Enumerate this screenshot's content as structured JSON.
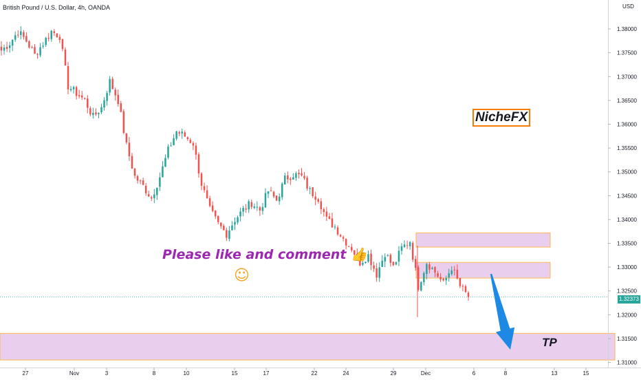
{
  "chart_data": {
    "type": "candlestick",
    "title": "British Pound / U.S. Dollar, 4h, OANDA",
    "currency": "USD",
    "yticks": [
      "1.38000",
      "1.37500",
      "1.37000",
      "1.36500",
      "1.36000",
      "1.35500",
      "1.35000",
      "1.34500",
      "1.34000",
      "1.33500",
      "1.33000",
      "1.32500",
      "1.32000",
      "1.31500",
      "1.31000"
    ],
    "ylim": [
      1.3095,
      1.3855
    ],
    "xticks": [
      "27",
      "Nov",
      "3",
      "8",
      "10",
      "15",
      "17",
      "22",
      "24",
      "29",
      "Dec",
      "6",
      "8",
      "13",
      "15"
    ],
    "last_price": "1.32373",
    "colors": {
      "up": "#26a69a",
      "down": "#ef5350",
      "zone_fill": "#e1bee7",
      "zone_border": "#ffb74d",
      "arrow": "#1e88e5"
    },
    "zones": [
      {
        "label": "supply-zone-upper",
        "y_top": 1.3372,
        "y_bottom": 1.3342
      },
      {
        "label": "supply-zone-lower",
        "y_top": 1.331,
        "y_bottom": 1.3277
      },
      {
        "label": "tp-zone",
        "y_top": 1.3161,
        "y_bottom": 1.3105
      }
    ],
    "anchors": [
      [
        0,
        1.3755
      ],
      [
        3,
        1.377
      ],
      [
        6,
        1.3795
      ],
      [
        9,
        1.3775
      ],
      [
        12,
        1.3745
      ],
      [
        15,
        1.377
      ],
      [
        18,
        1.3795
      ],
      [
        21,
        1.3785
      ],
      [
        24,
        1.368
      ],
      [
        27,
        1.3665
      ],
      [
        30,
        1.365
      ],
      [
        33,
        1.3615
      ],
      [
        36,
        1.3635
      ],
      [
        39,
        1.369
      ],
      [
        42,
        1.365
      ],
      [
        45,
        1.3555
      ],
      [
        48,
        1.349
      ],
      [
        51,
        1.347
      ],
      [
        54,
        1.3445
      ],
      [
        57,
        1.349
      ],
      [
        60,
        1.3545
      ],
      [
        63,
        1.3585
      ],
      [
        66,
        1.3575
      ],
      [
        69,
        1.356
      ],
      [
        72,
        1.3475
      ],
      [
        75,
        1.342
      ],
      [
        78,
        1.339
      ],
      [
        81,
        1.337
      ],
      [
        84,
        1.34
      ],
      [
        87,
        1.342
      ],
      [
        90,
        1.3435
      ],
      [
        93,
        1.342
      ],
      [
        96,
        1.346
      ],
      [
        99,
        1.344
      ],
      [
        102,
        1.3485
      ],
      [
        105,
        1.3495
      ],
      [
        108,
        1.349
      ],
      [
        111,
        1.346
      ],
      [
        114,
        1.3445
      ],
      [
        117,
        1.34
      ],
      [
        120,
        1.3385
      ],
      [
        123,
        1.336
      ],
      [
        126,
        1.334
      ],
      [
        129,
        1.331
      ],
      [
        132,
        1.3325
      ],
      [
        135,
        1.3285
      ],
      [
        138,
        1.333
      ],
      [
        141,
        1.33
      ],
      [
        144,
        1.334
      ],
      [
        147,
        1.3355
      ],
      [
        150,
        1.326
      ],
      [
        153,
        1.331
      ],
      [
        156,
        1.329
      ],
      [
        159,
        1.3265
      ],
      [
        162,
        1.33
      ],
      [
        165,
        1.326
      ],
      [
        168,
        1.3237
      ]
    ]
  },
  "annotations": {
    "brand": "NicheFX",
    "like_text": "Please like and comment 👍",
    "smiley": "☺",
    "tp": "TP"
  }
}
